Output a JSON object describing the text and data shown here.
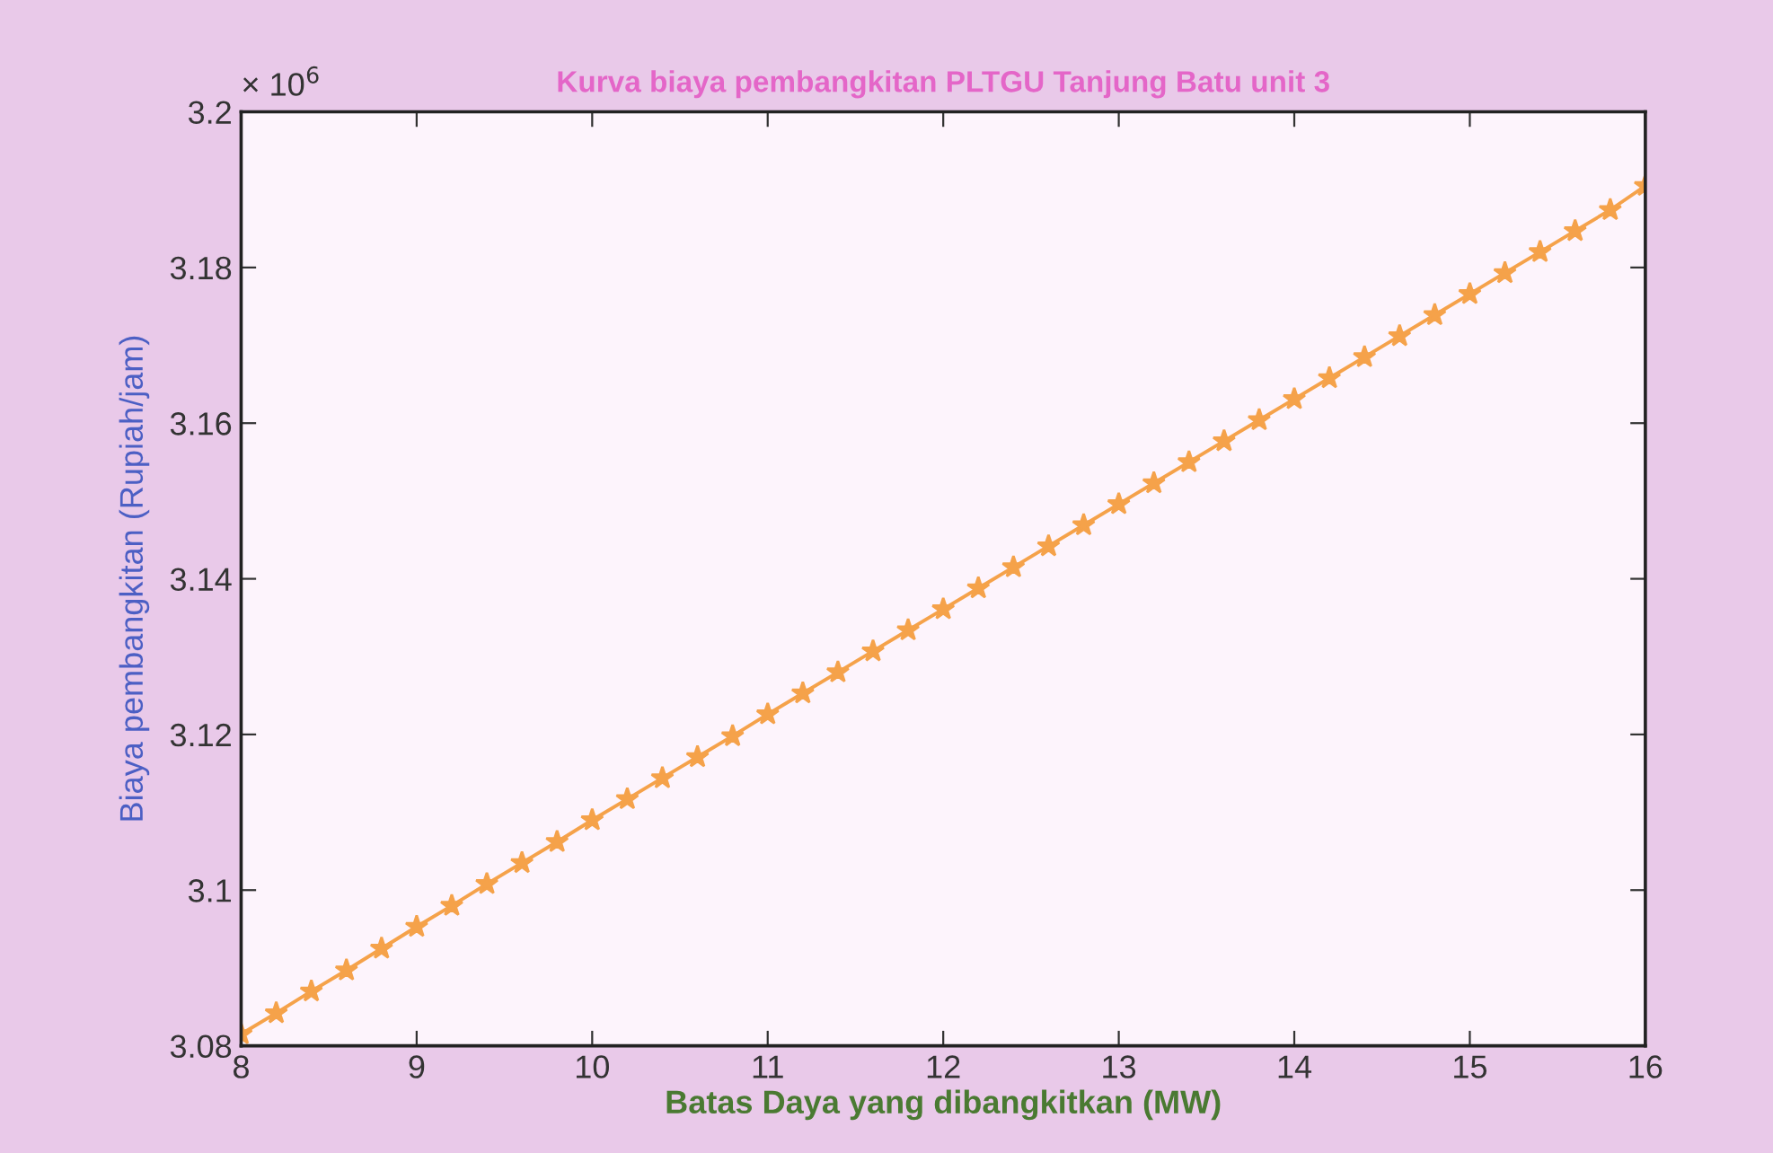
{
  "chart_data": {
    "type": "line",
    "title": "Kurva biaya pembangkitan PLTGU Tanjung Batu unit 3",
    "xlabel": "Batas Daya yang dibangkitkan (MW)",
    "ylabel": "Biaya pembangkitan (Rupiah/jam)",
    "annotations": [
      "× 10$^{6}$"
    ],
    "x": [
      8.0,
      8.2,
      8.4,
      8.6,
      8.8,
      9.0,
      9.2,
      9.4,
      9.6,
      9.8,
      10.0,
      10.2,
      10.4,
      10.6,
      10.8,
      11.0,
      11.2,
      11.4,
      11.6,
      11.8,
      12.0,
      12.2,
      12.4,
      12.6,
      12.8,
      13.0,
      13.2,
      13.4,
      13.6,
      13.8,
      14.0,
      14.2,
      14.4,
      14.6,
      14.8,
      15.0,
      15.2,
      15.4,
      15.6,
      15.8,
      16.0
    ],
    "series": [
      {
        "color": "#f5a24a",
        "values": [
          3.0815,
          3.0842,
          3.087,
          3.0897,
          3.0925,
          3.0953,
          3.098,
          3.1008,
          3.1035,
          3.1062,
          3.109,
          3.1117,
          3.1144,
          3.1171,
          3.1198,
          3.1226,
          3.1253,
          3.128,
          3.1307,
          3.1334,
          3.1361,
          3.1388,
          3.1415,
          3.1442,
          3.1469,
          3.1496,
          3.1523,
          3.155,
          3.1577,
          3.1604,
          3.1631,
          3.1658,
          3.1685,
          3.1712,
          3.1739,
          3.1766,
          3.1793,
          3.182,
          3.1847,
          3.1874,
          3.1905
        ]
      }
    ],
    "xlim": [
      8,
      16
    ],
    "xticks": [
      8,
      9,
      10,
      11,
      12,
      13,
      14,
      15,
      16
    ],
    "ylim": [
      3.08,
      3.2
    ],
    "yticks": [
      3.08,
      3.1,
      3.12,
      3.14,
      3.16,
      3.18,
      3.2
    ],
    "marker": "star",
    "line_style": "solid",
    "grid": false,
    "legend": false
  }
}
